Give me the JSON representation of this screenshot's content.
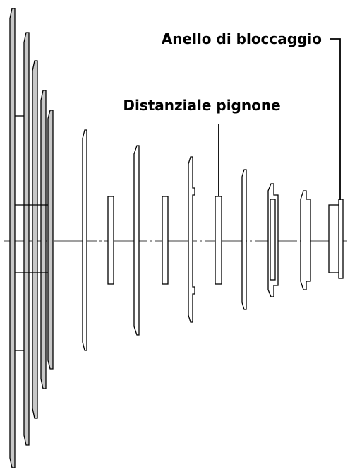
{
  "labels": {
    "lock_ring": "Anello di bloccaggio",
    "spacer": "Distanziale pignone"
  },
  "colors": {
    "line": "#000000",
    "sprocket_fill": "#c8c8c8",
    "background": "#ffffff"
  },
  "parts": {
    "large_sprockets_shaded": 5,
    "small_sprockets": 7,
    "spacers": 4
  }
}
